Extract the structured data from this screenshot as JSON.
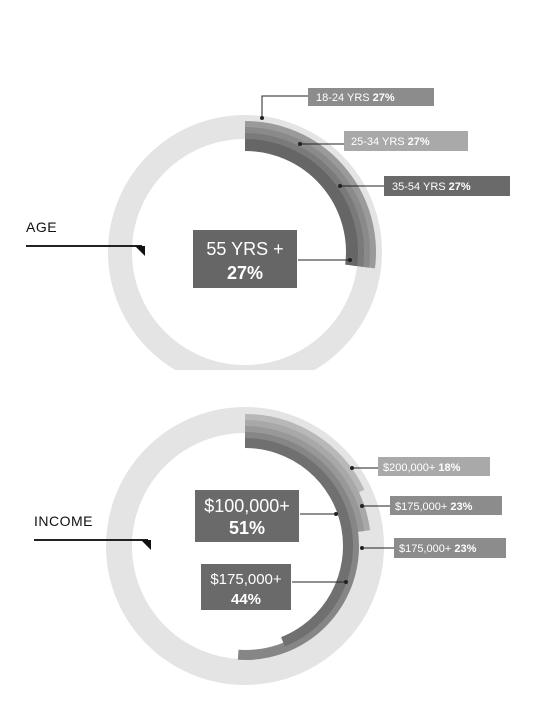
{
  "chart_data": [
    {
      "type": "donut",
      "section_label": "AGE",
      "center": {
        "line1": "55 YRS +",
        "line2": "27%"
      },
      "segments": [
        {
          "label": "18-24 YRS",
          "pct_label": "27%",
          "value": 27,
          "color": "#9a9a9a"
        },
        {
          "label": "25-34 YRS",
          "pct_label": "27%",
          "value": 27,
          "color": "#8a8a8a"
        },
        {
          "label": "35-54 YRS",
          "pct_label": "27%",
          "value": 27,
          "color": "#7a7a7a"
        },
        {
          "label": "55 YRS +",
          "pct_label": "27%",
          "value": 27,
          "color": "#666666"
        }
      ],
      "track_color": "#e4e4e4"
    },
    {
      "type": "donut",
      "section_label": "INCOME",
      "segments": [
        {
          "label": "$200,000+",
          "pct_label": "18%",
          "value": 18,
          "color": "#b8b8b8"
        },
        {
          "label": "$175,000+",
          "pct_label": "23%",
          "value": 23,
          "color": "#a8a8a8"
        },
        {
          "label": "$175,000+",
          "pct_label": "23%",
          "value": 23,
          "color": "#989898"
        },
        {
          "label": "$100,000+",
          "pct_label": "51%",
          "value": 51,
          "color": "#868686"
        },
        {
          "label": "$175,000+",
          "pct_label": "44%",
          "value": 44,
          "color": "#707070"
        }
      ],
      "track_color": "#e4e4e4"
    }
  ]
}
